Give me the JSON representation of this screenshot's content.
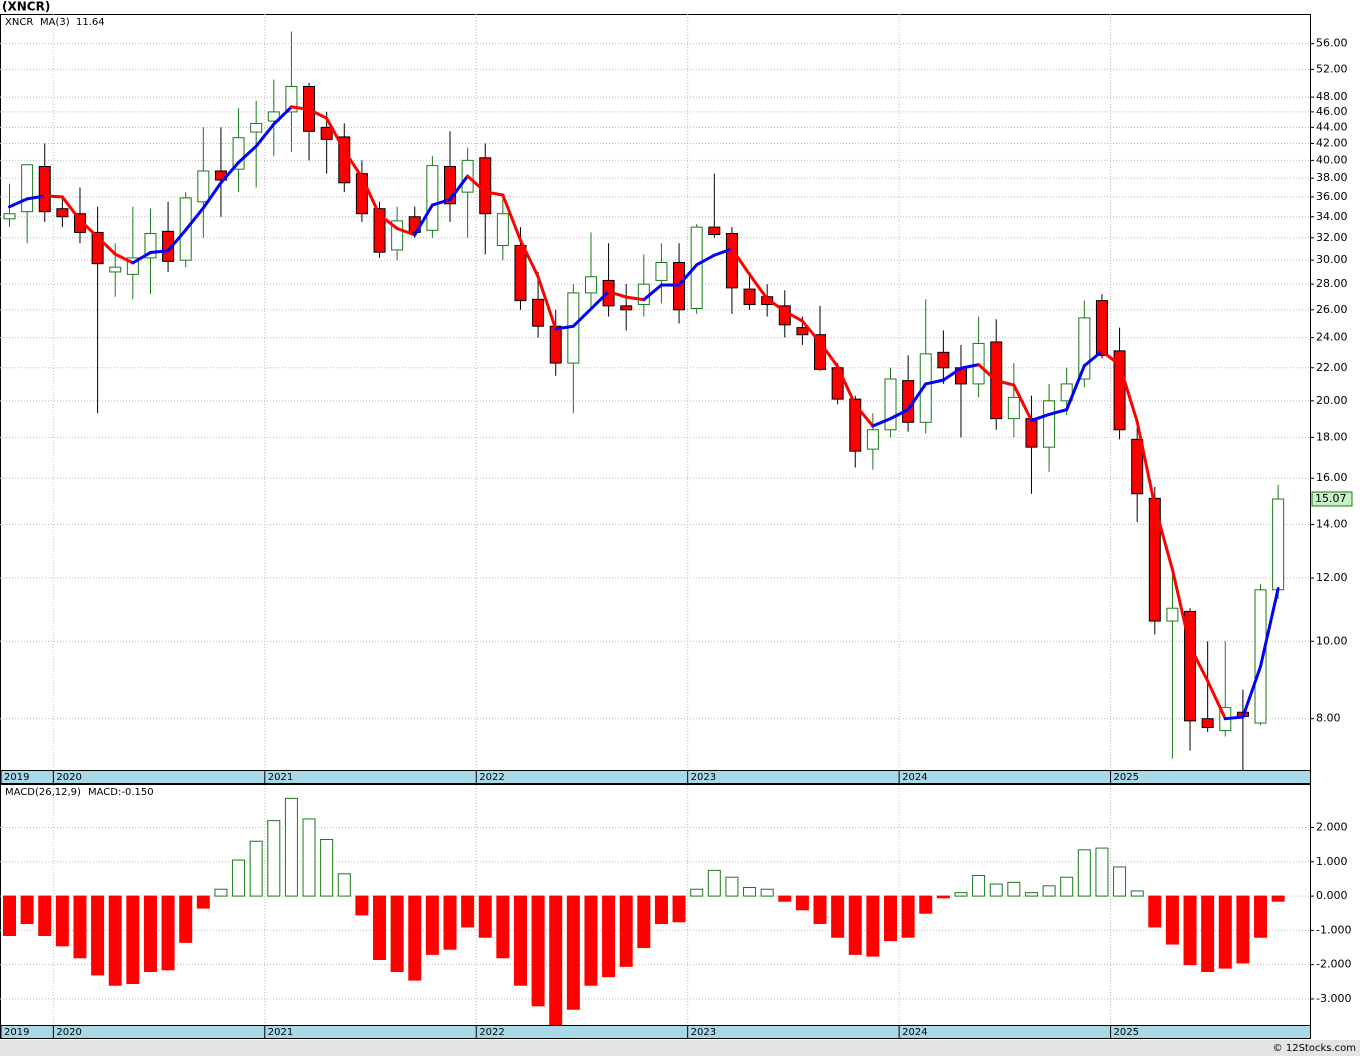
{
  "chart_data": [
    {
      "type": "candlestick",
      "title": "(XNCR)",
      "ticker": "XNCR",
      "categories": [
        "2019",
        null,
        null,
        "2020",
        null,
        null,
        null,
        null,
        null,
        null,
        null,
        null,
        null,
        null,
        null,
        "2021",
        null,
        null,
        null,
        null,
        null,
        null,
        null,
        null,
        null,
        null,
        null,
        "2022",
        null,
        null,
        null,
        null,
        null,
        null,
        null,
        null,
        null,
        null,
        null,
        "2023",
        null,
        null,
        null,
        null,
        null,
        null,
        null,
        null,
        null,
        null,
        null,
        "2024",
        null,
        null,
        null,
        null,
        null,
        null,
        null,
        null,
        null,
        null,
        null,
        "2025",
        null,
        null,
        null,
        null,
        null,
        null,
        null,
        null,
        null
      ],
      "open": [
        33.8,
        34.5,
        39.3,
        34.8,
        34.3,
        32.5,
        29.0,
        28.8,
        30.2,
        32.6,
        30.0,
        35.5,
        38.8,
        39.0,
        43.4,
        44.8,
        46.0,
        49.5,
        44.0,
        42.8,
        38.5,
        34.8,
        30.9,
        34.0,
        32.7,
        39.3,
        36.5,
        40.3,
        31.3,
        31.3,
        26.8,
        24.8,
        22.3,
        27.3,
        28.3,
        26.3,
        26.4,
        28.3,
        29.8,
        26.1,
        33.0,
        32.4,
        27.6,
        27.0,
        26.3,
        24.7,
        24.2,
        22.0,
        20.1,
        17.4,
        18.4,
        21.2,
        18.8,
        23.0,
        22.0,
        21.0,
        23.7,
        19.0,
        19.0,
        17.5,
        20.0,
        21.3,
        26.7,
        23.1,
        17.9,
        15.1,
        10.6,
        10.9,
        8.0,
        7.73,
        8.15,
        7.9,
        11.6
      ],
      "high": [
        37.4,
        39.5,
        42.0,
        36.0,
        37.0,
        35.0,
        31.5,
        35.0,
        34.8,
        35.5,
        36.5,
        44.0,
        44.0,
        46.5,
        47.5,
        50.5,
        58.0,
        50.0,
        46.0,
        44.5,
        40.0,
        35.5,
        35.0,
        35.0,
        40.5,
        43.5,
        41.5,
        42.0,
        36.0,
        33.0,
        29.0,
        26.0,
        28.0,
        32.5,
        31.5,
        28.0,
        30.5,
        31.5,
        31.5,
        33.3,
        38.5,
        33.0,
        29.0,
        28.0,
        27.5,
        25.5,
        26.3,
        22.3,
        20.3,
        19.3,
        22.0,
        22.8,
        26.8,
        24.5,
        23.5,
        25.5,
        25.3,
        22.3,
        20.3,
        21.0,
        22.0,
        26.7,
        27.2,
        24.7,
        18.5,
        15.6,
        12.2,
        11.0,
        10.0,
        10.0,
        8.7,
        11.8,
        15.7
      ],
      "low": [
        33.0,
        31.5,
        33.5,
        33.0,
        31.5,
        19.3,
        27.0,
        26.8,
        27.2,
        29.0,
        29.4,
        32.0,
        34.0,
        36.5,
        37.0,
        40.5,
        41.0,
        40.0,
        38.5,
        36.5,
        33.5,
        30.2,
        30.0,
        32.0,
        32.0,
        33.5,
        32.0,
        30.5,
        30.0,
        26.0,
        24.0,
        21.5,
        19.3,
        26.0,
        25.5,
        24.5,
        25.5,
        26.5,
        25.0,
        25.7,
        32.0,
        25.7,
        26.0,
        25.5,
        24.0,
        23.5,
        21.8,
        19.8,
        16.5,
        16.4,
        18.0,
        18.3,
        18.2,
        21.0,
        18.0,
        20.2,
        18.4,
        18.0,
        15.3,
        16.3,
        19.2,
        20.8,
        22.6,
        17.9,
        14.1,
        10.2,
        7.13,
        7.3,
        7.7,
        7.6,
        6.9,
        7.85,
        11.3
      ],
      "close": [
        34.3,
        39.5,
        34.5,
        34.0,
        32.5,
        29.7,
        29.4,
        30.2,
        32.4,
        29.9,
        35.9,
        38.8,
        37.8,
        42.7,
        44.5,
        46.0,
        49.5,
        43.5,
        42.5,
        37.5,
        34.3,
        30.7,
        33.6,
        32.5,
        39.4,
        35.3,
        40.0,
        34.3,
        34.3,
        26.7,
        24.8,
        22.3,
        27.3,
        28.6,
        26.3,
        26.0,
        28.0,
        29.8,
        26.0,
        33.0,
        32.3,
        27.7,
        26.4,
        26.4,
        24.9,
        24.2,
        21.9,
        20.1,
        17.3,
        18.4,
        21.3,
        18.8,
        22.9,
        22.0,
        21.0,
        23.6,
        19.0,
        20.2,
        17.5,
        20.0,
        21.0,
        25.4,
        22.8,
        18.4,
        15.3,
        10.6,
        11.0,
        7.95,
        7.8,
        8.26,
        8.05,
        11.6,
        15.07
      ],
      "up_color": "#1a7a1a",
      "down_color": "#ff0000",
      "series": [
        {
          "name": "MA(3)",
          "color": "#0000ff",
          "down_color": "#ff0000",
          "last_label": "11.64",
          "values": [
            35.0,
            35.8,
            36.1,
            36.0,
            33.67,
            32.07,
            30.53,
            29.77,
            30.67,
            30.83,
            32.73,
            34.87,
            37.5,
            39.77,
            41.67,
            44.4,
            46.67,
            46.33,
            45.17,
            41.17,
            38.1,
            34.17,
            32.87,
            32.27,
            35.17,
            35.73,
            38.23,
            36.53,
            36.2,
            31.77,
            28.6,
            24.6,
            24.8,
            26.07,
            27.4,
            26.97,
            26.77,
            27.93,
            27.93,
            29.6,
            30.43,
            31.0,
            28.8,
            26.83,
            25.9,
            25.17,
            23.67,
            22.07,
            19.77,
            18.6,
            19.0,
            19.5,
            21.0,
            21.23,
            21.97,
            22.2,
            21.2,
            20.93,
            18.9,
            19.23,
            19.5,
            22.13,
            23.07,
            22.2,
            18.83,
            14.77,
            12.3,
            9.85,
            8.92,
            8.0,
            8.04,
            9.3,
            11.64
          ]
        }
      ],
      "last_price_label": "15.07",
      "log_scale": true,
      "grid": true,
      "ylim": [
        6.9,
        61
      ],
      "yticks": [
        {
          "value": 8,
          "label": "8.00"
        },
        {
          "value": 10,
          "label": "10.00"
        },
        {
          "value": 12,
          "label": "12.00"
        },
        {
          "value": 14,
          "label": "14.00"
        },
        {
          "value": 16,
          "label": "16.00"
        },
        {
          "value": 18,
          "label": "18.00"
        },
        {
          "value": 20,
          "label": "20.00"
        },
        {
          "value": 22,
          "label": "22.00"
        },
        {
          "value": 24,
          "label": "24.00"
        },
        {
          "value": 26,
          "label": "26.00"
        },
        {
          "value": 28,
          "label": "28.00"
        },
        {
          "value": 30,
          "label": "30.00"
        },
        {
          "value": 32,
          "label": "32.00"
        },
        {
          "value": 34,
          "label": "34.00"
        },
        {
          "value": 36,
          "label": "36.00"
        },
        {
          "value": 38,
          "label": "38.00"
        },
        {
          "value": 40,
          "label": "40.00"
        },
        {
          "value": 42,
          "label": "42.00"
        },
        {
          "value": 44,
          "label": "44.00"
        },
        {
          "value": 46,
          "label": "46.00"
        },
        {
          "value": 48,
          "label": "48.00"
        },
        {
          "value": 52,
          "label": "52.00"
        },
        {
          "value": 56,
          "label": "56.00"
        }
      ]
    },
    {
      "type": "bar",
      "legend_name": "MACD(26,12,9)",
      "legend_value": "MACD:-0.150",
      "categories": [
        "2019",
        null,
        null,
        "2020",
        null,
        null,
        null,
        null,
        null,
        null,
        null,
        null,
        null,
        null,
        null,
        "2021",
        null,
        null,
        null,
        null,
        null,
        null,
        null,
        null,
        null,
        null,
        null,
        "2022",
        null,
        null,
        null,
        null,
        null,
        null,
        null,
        null,
        null,
        null,
        null,
        "2023",
        null,
        null,
        null,
        null,
        null,
        null,
        null,
        null,
        null,
        null,
        null,
        "2024",
        null,
        null,
        null,
        null,
        null,
        null,
        null,
        null,
        null,
        null,
        null,
        "2025",
        null,
        null,
        null,
        null,
        null,
        null,
        null,
        null,
        null
      ],
      "values": [
        -1.15,
        -0.8,
        -1.15,
        -1.45,
        -1.8,
        -2.3,
        -2.6,
        -2.55,
        -2.2,
        -2.15,
        -1.35,
        -0.35,
        0.2,
        1.05,
        1.6,
        2.2,
        2.85,
        2.25,
        1.65,
        0.65,
        -0.55,
        -1.85,
        -2.2,
        -2.45,
        -1.7,
        -1.55,
        -0.9,
        -1.2,
        -1.8,
        -2.6,
        -3.2,
        -3.75,
        -3.3,
        -2.6,
        -2.35,
        -2.05,
        -1.5,
        -0.8,
        -0.75,
        0.2,
        0.75,
        0.55,
        0.25,
        0.2,
        -0.15,
        -0.4,
        -0.8,
        -1.2,
        -1.7,
        -1.75,
        -1.3,
        -1.2,
        -0.5,
        -0.05,
        0.1,
        0.6,
        0.35,
        0.4,
        0.1,
        0.3,
        0.55,
        1.35,
        1.4,
        0.85,
        0.15,
        -0.9,
        -1.4,
        -2.0,
        -2.2,
        -2.1,
        -1.95,
        -1.2,
        -0.15
      ],
      "up_color": "#1a7a1a",
      "down_color": "#ff0000",
      "grid": true,
      "ylim": [
        -3.76,
        3.24
      ],
      "yticks": [
        {
          "value": 2,
          "label": "2.000"
        },
        {
          "value": 1,
          "label": "1.000"
        },
        {
          "value": 0,
          "label": "0.000"
        },
        {
          "value": -1,
          "label": "-1.000"
        },
        {
          "value": -2,
          "label": "-2.000"
        },
        {
          "value": -3,
          "label": "-3.000"
        }
      ]
    }
  ],
  "footer": "© 12Stocks.com"
}
